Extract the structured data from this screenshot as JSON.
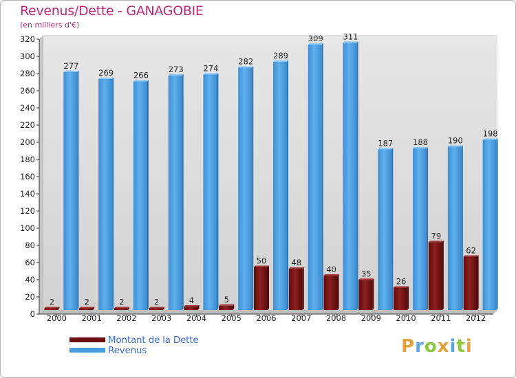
{
  "header": {
    "title": "Revenus/Dette - GANAGOBIE",
    "subtitle": "(en milliers d'€)"
  },
  "chart_data": {
    "type": "bar",
    "categories": [
      "2000",
      "2001",
      "2002",
      "2003",
      "2004",
      "2005",
      "2006",
      "2007",
      "2008",
      "2009",
      "2010",
      "2011",
      "2012"
    ],
    "series": [
      {
        "name": "Montant de la Dette",
        "color": "#7a1a1a",
        "values": [
          2,
          2,
          2,
          2,
          4,
          5,
          50,
          48,
          40,
          35,
          26,
          79,
          62
        ]
      },
      {
        "name": "Revenus",
        "color": "#5aa6e6",
        "values": [
          277,
          269,
          266,
          273,
          274,
          282,
          289,
          309,
          311,
          187,
          188,
          190,
          198
        ]
      }
    ],
    "ylim": [
      0,
      320
    ],
    "yticks": [
      0,
      20,
      40,
      60,
      80,
      100,
      120,
      140,
      160,
      180,
      200,
      220,
      240,
      260,
      280,
      300,
      320
    ],
    "grid": false,
    "background": "#dedede",
    "legend_position": "bottom-left"
  },
  "legend": {
    "items": [
      {
        "label": "Montant de la Dette",
        "color": "#6b0f0f"
      },
      {
        "label": "Revenus",
        "color": "#4a9de0"
      }
    ]
  },
  "logo": {
    "letters": [
      "P",
      "r",
      "o",
      "x",
      "i",
      "t",
      "i"
    ],
    "colors": [
      "#e8a13a",
      "#5aa6e6",
      "#8dc63f",
      "#e8a13a",
      "#5aa6e6",
      "#8dc63f",
      "#e8a13a"
    ]
  }
}
